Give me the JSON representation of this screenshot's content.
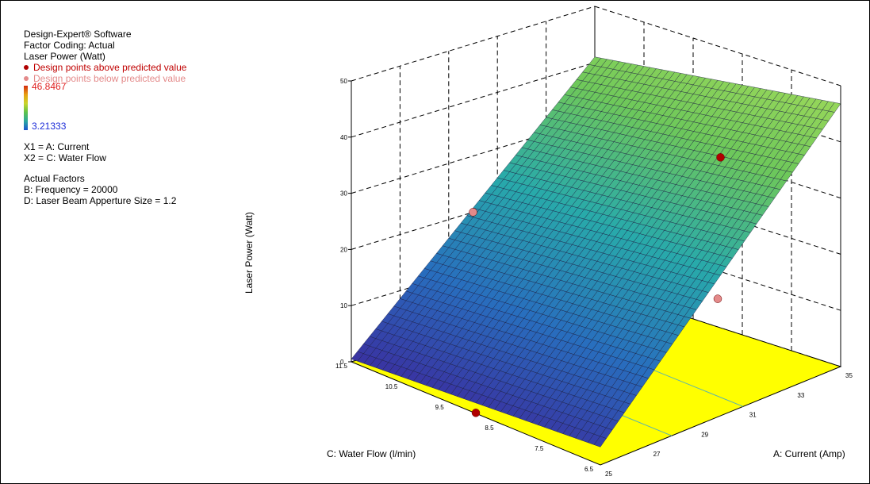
{
  "legend": {
    "software": "Design-Expert® Software",
    "coding": "Factor Coding: Actual",
    "response": "Laser Power (Watt)",
    "above_label": "Design points above predicted value",
    "below_label": "Design points below predicted value",
    "cmax": "46.8467",
    "cmin": "3.21333",
    "x1": "X1 = A: Current",
    "x2": "X2 = C: Water Flow",
    "actual_title": "Actual Factors",
    "factor_b": "B: Frequency = 20000",
    "factor_d": "D: Laser Beam Apperture Size = 1.2"
  },
  "colors": {
    "above_point": "#b00000",
    "below_point": "#e48a8a",
    "floor": "#ffff00",
    "surface_low": "#3a2fa0",
    "surface_high": "#8fd45a"
  },
  "chart_data": {
    "type": "surface",
    "xlabel": "A: Current (Amp)",
    "ylabel": "C: Water Flow (l/min)",
    "zlabel": "Laser Power (Watt)",
    "x_ticks": [
      "25",
      "27",
      "29",
      "31",
      "33",
      "35"
    ],
    "y_ticks": [
      "6.5",
      "7.5",
      "8.5",
      "9.5",
      "10.5",
      "11.5"
    ],
    "z_ticks": [
      "0",
      "10",
      "20",
      "30",
      "40",
      "50"
    ],
    "xlim": [
      25,
      35
    ],
    "ylim": [
      6.5,
      11.5
    ],
    "zlim": [
      0,
      50
    ],
    "surface_corners": [
      {
        "current": 25,
        "water_flow": 11.5,
        "power": 0.5
      },
      {
        "current": 25,
        "water_flow": 6.5,
        "power": 3.2
      },
      {
        "current": 35,
        "water_flow": 6.5,
        "power": 46.8
      },
      {
        "current": 35,
        "water_flow": 11.5,
        "power": 41
      }
    ],
    "design_points": [
      {
        "current": 25,
        "water_flow": 9,
        "power": 0.1,
        "position": "above"
      },
      {
        "current": 30,
        "water_flow": 11.5,
        "power": 20,
        "position": "below"
      },
      {
        "current": 35,
        "water_flow": 9,
        "power": 5,
        "position": "below"
      },
      {
        "current": 30,
        "water_flow": 6.5,
        "power": 46,
        "position": "above"
      }
    ]
  }
}
